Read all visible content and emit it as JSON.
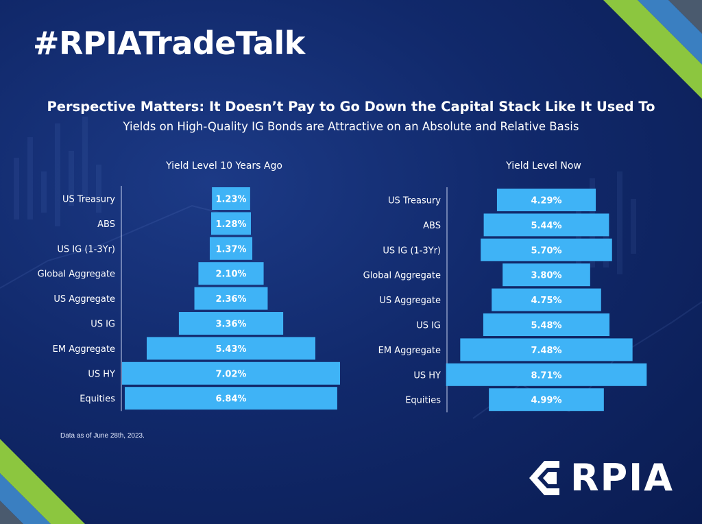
{
  "header": {
    "hashtag": "#RPIATradeTalk",
    "headline": "Perspective Matters: It Doesn’t Pay to Go Down the Capital Stack Like It Used To",
    "subheadline": "Yields on High-Quality IG Bonds are Attractive on an Absolute and Relative Basis"
  },
  "footnote": "Data as of June 28th, 2023.",
  "logo": {
    "text": "RPIA"
  },
  "colors": {
    "bar": "#3fb3f6",
    "background": "#11296b",
    "accent_green": "#8cc63f",
    "accent_blue": "#3a7fc1",
    "accent_gray": "#4a5a6e"
  },
  "chart_data": [
    {
      "type": "bar",
      "orientation": "horizontal-centered",
      "title": "Yield Level 10 Years Ago",
      "categories": [
        "US Treasury",
        "ABS",
        "US IG (1-3Yr)",
        "Global Aggregate",
        "US Aggregate",
        "US IG",
        "EM Aggregate",
        "US HY",
        "Equities"
      ],
      "values": [
        1.23,
        1.28,
        1.37,
        2.1,
        2.36,
        3.36,
        5.43,
        7.02,
        6.84
      ],
      "value_labels": [
        "1.23%",
        "1.28%",
        "1.37%",
        "2.10%",
        "2.36%",
        "3.36%",
        "5.43%",
        "7.02%",
        "6.84%"
      ],
      "unit": "%"
    },
    {
      "type": "bar",
      "orientation": "horizontal-centered",
      "title": "Yield Level Now",
      "categories": [
        "US Treasury",
        "ABS",
        "US IG (1-3Yr)",
        "Global Aggregate",
        "US Aggregate",
        "US IG",
        "EM Aggregate",
        "US HY",
        "Equities"
      ],
      "values": [
        4.29,
        5.44,
        5.7,
        3.8,
        4.75,
        5.48,
        7.48,
        8.71,
        4.99
      ],
      "value_labels": [
        "4.29%",
        "5.44%",
        "5.70%",
        "3.80%",
        "4.75%",
        "5.48%",
        "7.48%",
        "8.71%",
        "4.99%"
      ],
      "unit": "%"
    }
  ]
}
